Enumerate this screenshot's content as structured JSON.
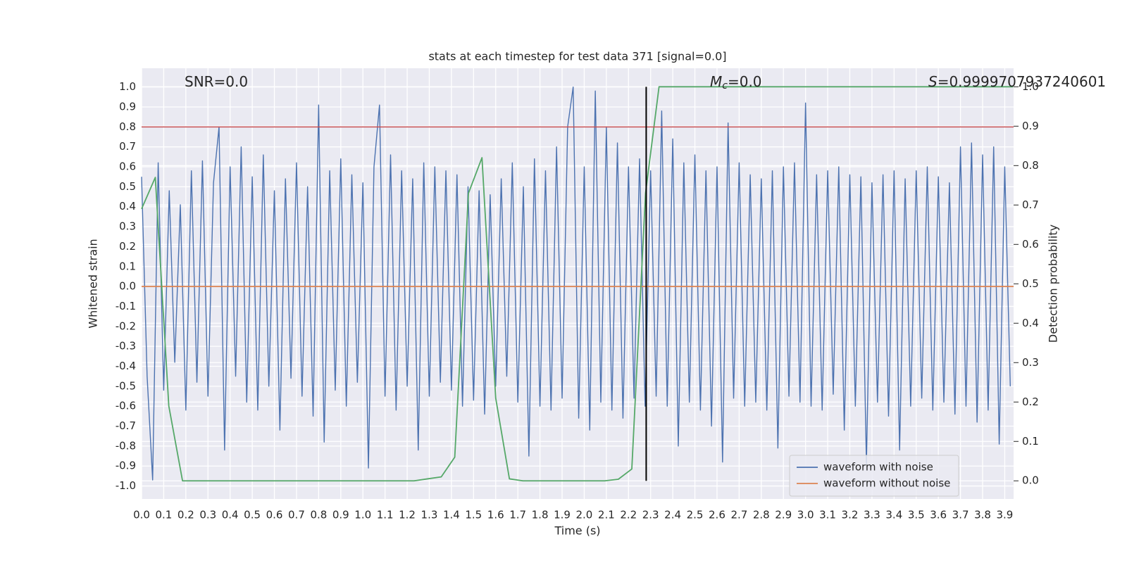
{
  "chart_data": {
    "type": "line",
    "title": "stats at each timestep for test data 371 [signal=0.0]",
    "xlabel": "Time (s)",
    "ylabel": "Whitened strain",
    "y2label": "Detection probability",
    "xlim": [
      0,
      3.94
    ],
    "ylim": [
      -1.065,
      1.094
    ],
    "y2lim": [
      -0.046,
      1.047
    ],
    "xticks": [
      {
        "value": 0,
        "label": "0.0"
      },
      0.1,
      0.2,
      0.3,
      0.4,
      0.5,
      0.6,
      0.7,
      0.8,
      0.9,
      {
        "value": 1,
        "label": "1.0"
      },
      1.1,
      1.2,
      1.3,
      1.4,
      1.5,
      1.6,
      1.7,
      1.8,
      1.9,
      {
        "value": 2,
        "label": "2.0"
      },
      2.1,
      2.2,
      2.3,
      2.4,
      2.5,
      2.6,
      2.7,
      2.8,
      2.9,
      {
        "value": 3,
        "label": "3.0"
      },
      3.1,
      3.2,
      3.3,
      3.4,
      3.5,
      3.6,
      3.7,
      3.8,
      3.9
    ],
    "yticks": [
      {
        "value": -1,
        "label": "-1.0"
      },
      -0.9,
      -0.8,
      -0.7,
      -0.6,
      -0.5,
      -0.4,
      -0.3,
      -0.2,
      -0.1,
      {
        "value": 0,
        "label": "0.0"
      },
      0.1,
      0.2,
      0.3,
      0.4,
      0.5,
      0.6,
      0.7,
      0.8,
      0.9,
      {
        "value": 1,
        "label": "1.0"
      }
    ],
    "y2ticks": [
      {
        "value": 0,
        "label": "0.0"
      },
      0.1,
      0.2,
      0.3,
      0.4,
      0.5,
      0.6,
      0.7,
      0.8,
      0.9,
      {
        "value": 1,
        "label": "1.0"
      }
    ],
    "grid": true,
    "legend": "lower right",
    "series": [
      {
        "name": "waveform with noise",
        "color": "#4c72b0",
        "x": [
          0,
          0.025,
          0.05,
          0.075,
          0.1,
          0.125,
          0.15,
          0.175,
          0.2,
          0.225,
          0.25,
          0.275,
          0.3,
          0.325,
          0.35,
          0.375,
          0.4,
          0.425,
          0.45,
          0.475,
          0.5,
          0.525,
          0.55,
          0.575,
          0.6,
          0.625,
          0.65,
          0.675,
          0.7,
          0.725,
          0.75,
          0.775,
          0.8,
          0.825,
          0.85,
          0.875,
          0.9,
          0.925,
          0.95,
          0.975,
          1,
          1.025,
          1.05,
          1.075,
          1.1,
          1.125,
          1.15,
          1.175,
          1.2,
          1.225,
          1.25,
          1.275,
          1.3,
          1.325,
          1.35,
          1.375,
          1.4,
          1.425,
          1.45,
          1.475,
          1.5,
          1.525,
          1.55,
          1.575,
          1.6,
          1.625,
          1.65,
          1.675,
          1.7,
          1.725,
          1.75,
          1.775,
          1.8,
          1.825,
          1.85,
          1.875,
          1.9,
          1.925,
          1.95,
          1.975,
          2,
          2.025,
          2.05,
          2.075,
          2.1,
          2.125,
          2.15,
          2.175,
          2.2,
          2.225,
          2.25,
          2.275,
          2.3,
          2.325,
          2.35,
          2.375,
          2.4,
          2.425,
          2.45,
          2.475,
          2.5,
          2.525,
          2.55,
          2.575,
          2.6,
          2.625,
          2.65,
          2.675,
          2.7,
          2.725,
          2.75,
          2.775,
          2.8,
          2.825,
          2.85,
          2.875,
          2.9,
          2.925,
          2.95,
          2.975,
          3,
          3.025,
          3.05,
          3.075,
          3.1,
          3.125,
          3.15,
          3.175,
          3.2,
          3.225,
          3.25,
          3.275,
          3.3,
          3.325,
          3.35,
          3.375,
          3.4,
          3.425,
          3.45,
          3.475,
          3.5,
          3.525,
          3.55,
          3.575,
          3.6,
          3.625,
          3.65,
          3.675,
          3.7,
          3.725,
          3.75,
          3.775,
          3.8,
          3.825,
          3.85,
          3.875,
          3.9,
          3.925
        ],
        "values": [
          0.55,
          -0.45,
          -0.97,
          0.62,
          -0.52,
          0.48,
          -0.38,
          0.41,
          -0.62,
          0.58,
          -0.48,
          0.63,
          -0.55,
          0.52,
          0.8,
          -0.82,
          0.6,
          -0.45,
          0.7,
          -0.58,
          0.55,
          -0.62,
          0.66,
          -0.5,
          0.48,
          -0.72,
          0.54,
          -0.46,
          0.62,
          -0.55,
          0.5,
          -0.65,
          0.91,
          -0.78,
          0.58,
          -0.52,
          0.64,
          -0.6,
          0.56,
          -0.48,
          0.52,
          -0.91,
          0.6,
          0.91,
          -0.55,
          0.66,
          -0.62,
          0.58,
          -0.5,
          0.54,
          -0.82,
          0.62,
          -0.55,
          0.6,
          -0.48,
          0.58,
          -0.52,
          0.56,
          -0.6,
          0.5,
          -0.57,
          0.48,
          -0.64,
          0.46,
          -0.5,
          0.54,
          -0.45,
          0.62,
          -0.58,
          0.5,
          -0.85,
          0.64,
          -0.6,
          0.58,
          -0.62,
          0.7,
          -0.56,
          0.8,
          1.0,
          -0.66,
          0.6,
          -0.72,
          0.98,
          -0.58,
          0.8,
          -0.62,
          0.72,
          -0.66,
          0.6,
          -0.56,
          0.64,
          -0.6,
          0.58,
          -0.55,
          0.88,
          -0.6,
          0.74,
          -0.8,
          0.62,
          -0.58,
          0.66,
          -0.62,
          0.58,
          -0.7,
          0.6,
          -0.88,
          0.82,
          -0.56,
          0.62,
          -0.6,
          0.56,
          -0.58,
          0.54,
          -0.62,
          0.58,
          -0.81,
          0.6,
          -0.55,
          0.62,
          -0.58,
          0.92,
          -0.6,
          0.56,
          -0.62,
          0.58,
          -0.54,
          0.6,
          -0.72,
          0.56,
          -0.6,
          0.55,
          -0.89,
          0.52,
          -0.58,
          0.56,
          -0.65,
          0.58,
          -0.82,
          0.54,
          -0.6,
          0.58,
          -0.56,
          0.6,
          -0.62,
          0.55,
          -0.58,
          0.52,
          -0.64,
          0.7,
          -0.6,
          0.72,
          -0.68,
          0.66,
          -0.62,
          0.7,
          -0.79,
          0.6,
          -0.5
        ]
      },
      {
        "name": "waveform without noise",
        "color": "#dd8452",
        "x": [
          0,
          3.94
        ],
        "values": [
          0,
          0
        ]
      },
      {
        "color": "#55a868",
        "axis": "y2",
        "x": [
          0,
          0.062,
          0.123,
          0.185,
          0.246,
          0.308,
          0.369,
          0.431,
          0.492,
          0.554,
          0.615,
          0.677,
          0.738,
          0.8,
          0.862,
          0.923,
          0.985,
          1.046,
          1.108,
          1.169,
          1.231,
          1.292,
          1.354,
          1.415,
          1.477,
          1.538,
          1.6,
          1.662,
          1.723,
          1.785,
          1.846,
          1.908,
          1.969,
          2.031,
          2.092,
          2.154,
          2.215,
          2.277,
          2.338,
          2.4,
          2.462,
          2.523,
          2.585,
          2.646,
          2.708,
          2.769,
          2.831,
          2.892,
          2.954,
          3.015,
          3.077,
          3.138,
          3.2,
          3.262,
          3.323,
          3.385,
          3.446,
          3.508,
          3.569,
          3.631,
          3.692,
          3.754,
          3.815,
          3.877,
          3.938
        ],
        "values": [
          0.69,
          0.77,
          0.19,
          0,
          0,
          0,
          0,
          0,
          0,
          0,
          0,
          0,
          0,
          0,
          0,
          0,
          0,
          0,
          0,
          0,
          0,
          0.005,
          0.01,
          0.06,
          0.73,
          0.82,
          0.21,
          0.005,
          0,
          0,
          0,
          0,
          0,
          0,
          0,
          0.004,
          0.03,
          0.73,
          1,
          1,
          1,
          1,
          1,
          1,
          1,
          1,
          1,
          1,
          1,
          1,
          1,
          1,
          1,
          1,
          1,
          1,
          1,
          1,
          1,
          1,
          1,
          1,
          1,
          1,
          1
        ]
      }
    ],
    "hlines": [
      {
        "y": 0.8,
        "color": "#c44e52"
      }
    ],
    "vlines": [
      {
        "x": 2.28,
        "axis": "y2",
        "ymin": 0,
        "ymax": 1,
        "color": "#000000"
      }
    ],
    "annotations": [
      {
        "text": "SNR=0.0"
      },
      {
        "symbol": "M",
        "subscript": "c",
        "text": "=0.0"
      },
      {
        "symbol": "S",
        "text": "=0.9999707937240601"
      }
    ]
  }
}
